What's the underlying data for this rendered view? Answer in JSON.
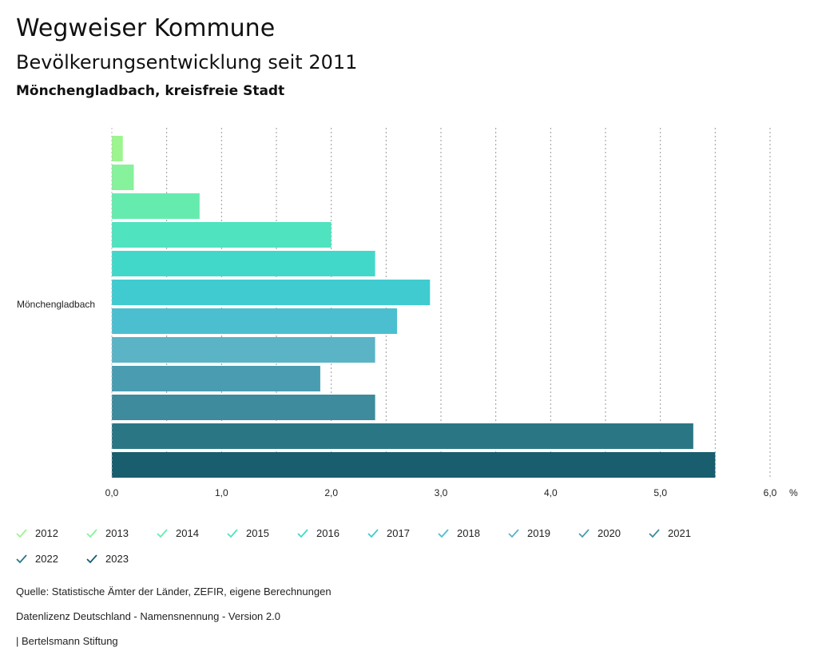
{
  "header": {
    "title": "Wegweiser Kommune",
    "subtitle": "Bevölkerungsentwicklung seit 2011",
    "region": "Mönchengladbach, kreisfreie Stadt"
  },
  "chart_data": {
    "type": "bar",
    "orientation": "horizontal",
    "categories": [
      "Mönchengladbach"
    ],
    "series": [
      {
        "name": "2012",
        "values": [
          0.1
        ],
        "color": "#9cf58f"
      },
      {
        "name": "2013",
        "values": [
          0.2
        ],
        "color": "#86f29c"
      },
      {
        "name": "2014",
        "values": [
          0.8
        ],
        "color": "#66ebae"
      },
      {
        "name": "2015",
        "values": [
          2.0
        ],
        "color": "#4fe3bf"
      },
      {
        "name": "2016",
        "values": [
          2.4
        ],
        "color": "#42d8c9"
      },
      {
        "name": "2017",
        "values": [
          2.9
        ],
        "color": "#3fcbd0"
      },
      {
        "name": "2018",
        "values": [
          2.6
        ],
        "color": "#4bbfcf"
      },
      {
        "name": "2019",
        "values": [
          2.4
        ],
        "color": "#5bb3c6"
      },
      {
        "name": "2020",
        "values": [
          1.9
        ],
        "color": "#4a9db0"
      },
      {
        "name": "2021",
        "values": [
          2.4
        ],
        "color": "#3d8b9c"
      },
      {
        "name": "2022",
        "values": [
          5.3
        ],
        "color": "#2a7685"
      },
      {
        "name": "2023",
        "values": [
          5.5
        ],
        "color": "#185e6e"
      }
    ],
    "xlim": [
      0,
      6
    ],
    "xticks": [
      "0,0",
      "1,0",
      "2,0",
      "3,0",
      "4,0",
      "5,0",
      "6,0"
    ],
    "xunit": "%",
    "grid": true,
    "legend_position": "bottom"
  },
  "footer": {
    "source": "Quelle: Statistische Ämter der Länder, ZEFIR, eigene Berechnungen",
    "license": "Datenlizenz Deutschland - Namensnennung - Version 2.0",
    "publisher": "| Bertelsmann Stiftung"
  }
}
